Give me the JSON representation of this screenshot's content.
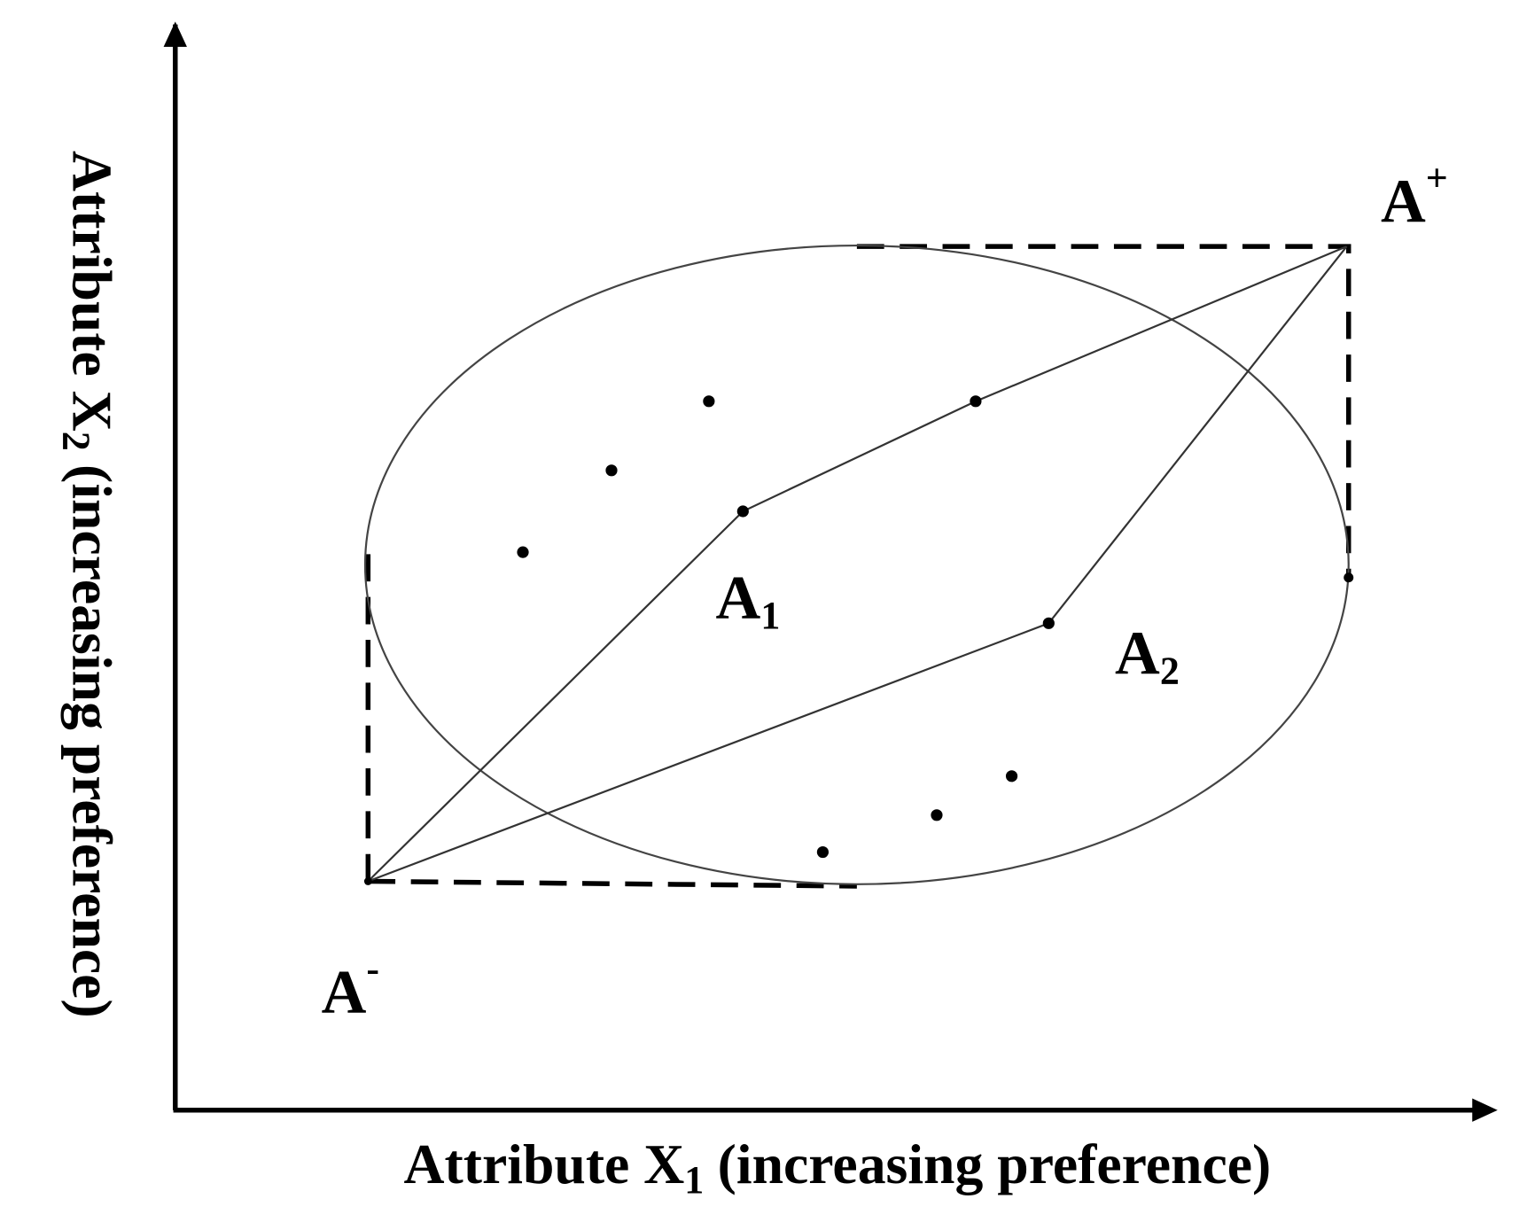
{
  "x_axis": {
    "label": "Attribute X",
    "subscript": "1",
    "suffix": "(increasing preference)"
  },
  "y_axis": {
    "label": "Attribute X",
    "subscript": "2",
    "suffix": "(increasing preference)"
  },
  "nodes": [
    {
      "label": "A",
      "superscript": "+"
    },
    {
      "label": "A",
      "superscript": "-"
    },
    {
      "label": "A",
      "subscript": "1"
    },
    {
      "label": "A",
      "subscript": "2"
    }
  ]
}
